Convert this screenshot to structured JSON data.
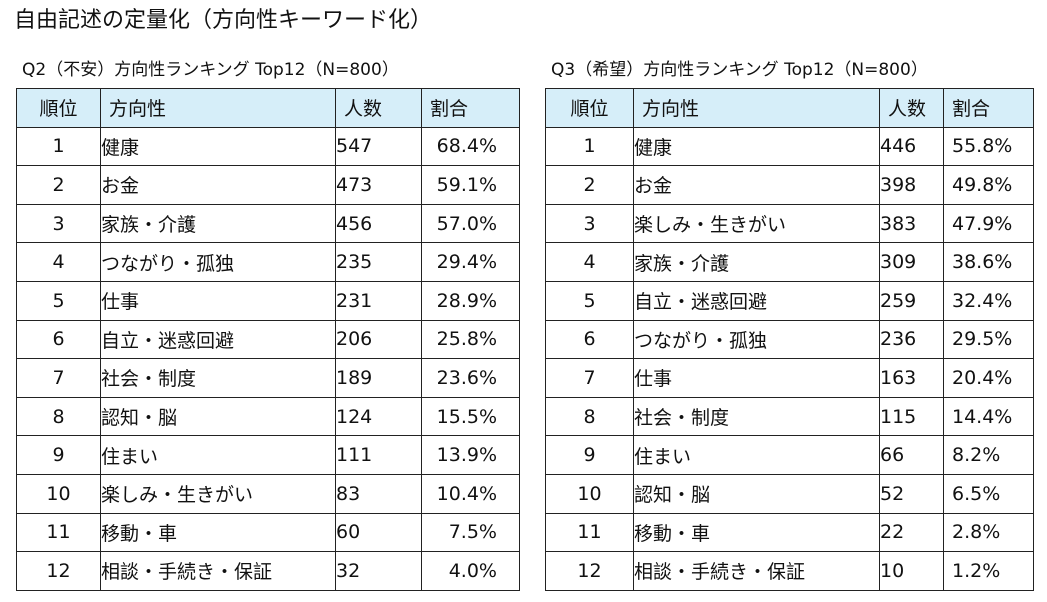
{
  "title": "自由記述の定量化（方向性キーワード化）",
  "headers": {
    "rank": "順位",
    "direction": "方向性",
    "count": "人数",
    "ratio": "割合"
  },
  "tables": [
    {
      "title": "Q2（不安）方向性ランキング Top12（N=800）",
      "rows": [
        {
          "rank": "1",
          "direction": "健康",
          "count": "547",
          "ratio": "68.4%"
        },
        {
          "rank": "2",
          "direction": "お金",
          "count": "473",
          "ratio": "59.1%"
        },
        {
          "rank": "3",
          "direction": "家族・介護",
          "count": "456",
          "ratio": "57.0%"
        },
        {
          "rank": "4",
          "direction": "つながり・孤独",
          "count": "235",
          "ratio": "29.4%"
        },
        {
          "rank": "5",
          "direction": "仕事",
          "count": "231",
          "ratio": "28.9%"
        },
        {
          "rank": "6",
          "direction": "自立・迷惑回避",
          "count": "206",
          "ratio": "25.8%"
        },
        {
          "rank": "7",
          "direction": "社会・制度",
          "count": "189",
          "ratio": "23.6%"
        },
        {
          "rank": "8",
          "direction": "認知・脳",
          "count": "124",
          "ratio": "15.5%"
        },
        {
          "rank": "9",
          "direction": "住まい",
          "count": "111",
          "ratio": "13.9%"
        },
        {
          "rank": "10",
          "direction": "楽しみ・生きがい",
          "count": "83",
          "ratio": "10.4%"
        },
        {
          "rank": "11",
          "direction": "移動・車",
          "count": "60",
          "ratio": "7.5%"
        },
        {
          "rank": "12",
          "direction": "相談・手続き・保証",
          "count": "32",
          "ratio": "4.0%"
        }
      ]
    },
    {
      "title": "Q3（希望）方向性ランキング Top12（N=800）",
      "rows": [
        {
          "rank": "1",
          "direction": "健康",
          "count": "446",
          "ratio": "55.8%"
        },
        {
          "rank": "2",
          "direction": "お金",
          "count": "398",
          "ratio": "49.8%"
        },
        {
          "rank": "3",
          "direction": "楽しみ・生きがい",
          "count": "383",
          "ratio": "47.9%"
        },
        {
          "rank": "4",
          "direction": "家族・介護",
          "count": "309",
          "ratio": "38.6%"
        },
        {
          "rank": "5",
          "direction": "自立・迷惑回避",
          "count": "259",
          "ratio": "32.4%"
        },
        {
          "rank": "6",
          "direction": "つながり・孤独",
          "count": "236",
          "ratio": "29.5%"
        },
        {
          "rank": "7",
          "direction": "仕事",
          "count": "163",
          "ratio": "20.4%"
        },
        {
          "rank": "8",
          "direction": "社会・制度",
          "count": "115",
          "ratio": "14.4%"
        },
        {
          "rank": "9",
          "direction": "住まい",
          "count": "66",
          "ratio": "8.2%"
        },
        {
          "rank": "10",
          "direction": "認知・脳",
          "count": "52",
          "ratio": "6.5%"
        },
        {
          "rank": "11",
          "direction": "移動・車",
          "count": "22",
          "ratio": "2.8%"
        },
        {
          "rank": "12",
          "direction": "相談・手続き・保証",
          "count": "10",
          "ratio": "1.2%"
        }
      ]
    }
  ],
  "colors": {
    "header_bg": "#d6eef9",
    "border": "#222222"
  }
}
